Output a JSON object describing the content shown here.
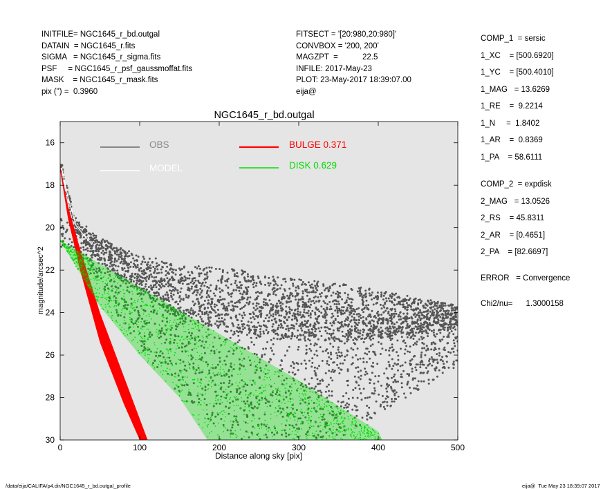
{
  "header_left": [
    "INITFILE= NGC1645_r_bd.outgal",
    "DATAIN  = NGC1645_r.fits",
    "SIGMA   = NGC1645_r_sigma.fits",
    "PSF     = NGC1645_r_psf_gaussmoffat.fits",
    "MASK    = NGC1645_r_mask.fits",
    "pix (\") =  0.3960"
  ],
  "header_mid": [
    "FITSECT = '[20:980,20:980]'",
    "CONVBOX = '200, 200'",
    "MAGZPT  =           22.5",
    "INFILE: 2017-May-23",
    "PLOT: 23-May-2017 18:39:07.00",
    "eija@"
  ],
  "components": [
    "COMP_1  = sersic",
    "1_XC    = [500.6920]",
    "1_YC    = [500.4010]",
    "1_MAG   = 13.6269",
    "1_RE    =  9.2214",
    "1_N     =  1.8402",
    "1_AR    =  0.8369",
    "1_PA    = 58.6111",
    "COMP_2  = expdisk",
    "2_MAG   = 13.0526",
    "2_RS    = 45.8311",
    "2_AR    = [0.4651]",
    "2_PA    = [82.6697]",
    "ERROR   = Convergence",
    "Chi2/nu=      1.3000158"
  ],
  "footer": {
    "path": "/data/eija/CALIFA/p4.dir/NGC1645_r_bd.outgal_profile",
    "stamp": "eija@  Tue May 23 18:39:07 2017"
  },
  "chart_data": {
    "type": "scatter",
    "title": "NGC1645_r_bd.outgal",
    "xlabel": "Distance along sky [pix]",
    "ylabel": "magnitude/arcsec^2",
    "xlim": [
      0,
      500
    ],
    "ylim": [
      30,
      15
    ],
    "y_inverted": true,
    "xticks": [
      0,
      100,
      200,
      300,
      400,
      500
    ],
    "yticks": [
      16,
      18,
      20,
      22,
      24,
      26,
      28,
      30
    ],
    "grid": false,
    "background": "#e5e5e5",
    "legend_position": "top",
    "legend": [
      {
        "label": "OBS",
        "color": "#666666"
      },
      {
        "label": "MODEL",
        "color": "#ffffff"
      },
      {
        "label": "BULGE  0.371",
        "color": "#ff0000"
      },
      {
        "label": "DISK  0.629",
        "color": "#00dd00"
      }
    ],
    "series": [
      {
        "name": "OBS",
        "color": "#555555",
        "description_points": [
          [
            2,
            17.2
          ],
          [
            10,
            18.6
          ],
          [
            20,
            19.9
          ],
          [
            40,
            20.8
          ],
          [
            80,
            21.8
          ],
          [
            150,
            23.0
          ],
          [
            250,
            23.7
          ],
          [
            350,
            24.0
          ],
          [
            500,
            24.2
          ]
        ],
        "scatter_upper": [
          [
            20,
            19.6
          ],
          [
            100,
            21.6
          ],
          [
            200,
            23.0
          ],
          [
            300,
            23.6
          ],
          [
            500,
            24.1
          ]
        ],
        "scatter_lower": [
          [
            20,
            21.0
          ],
          [
            60,
            23.5
          ],
          [
            100,
            25.6
          ],
          [
            150,
            28.0
          ],
          [
            220,
            30.0
          ],
          [
            350,
            30.0
          ],
          [
            500,
            26.5
          ]
        ]
      },
      {
        "name": "BULGE  0.371",
        "color": "#ff0000",
        "upper": [
          [
            0,
            17.1
          ],
          [
            10,
            19.0
          ],
          [
            25,
            21.0
          ],
          [
            50,
            24.0
          ],
          [
            80,
            27.0
          ],
          [
            110,
            30.0
          ]
        ],
        "lower": [
          [
            0,
            17.3
          ],
          [
            10,
            19.6
          ],
          [
            25,
            22.0
          ],
          [
            50,
            25.4
          ],
          [
            80,
            28.3
          ],
          [
            100,
            30.0
          ]
        ]
      },
      {
        "name": "DISK  0.629",
        "color": "#00dd00",
        "upper": [
          [
            0,
            20.6
          ],
          [
            100,
            22.8
          ],
          [
            200,
            25.0
          ],
          [
            300,
            27.2
          ],
          [
            400,
            29.6
          ],
          [
            405,
            30.0
          ]
        ],
        "lower": [
          [
            0,
            20.6
          ],
          [
            50,
            23.7
          ],
          [
            100,
            26.0
          ],
          [
            150,
            28.0
          ],
          [
            185,
            30.0
          ]
        ]
      }
    ]
  }
}
